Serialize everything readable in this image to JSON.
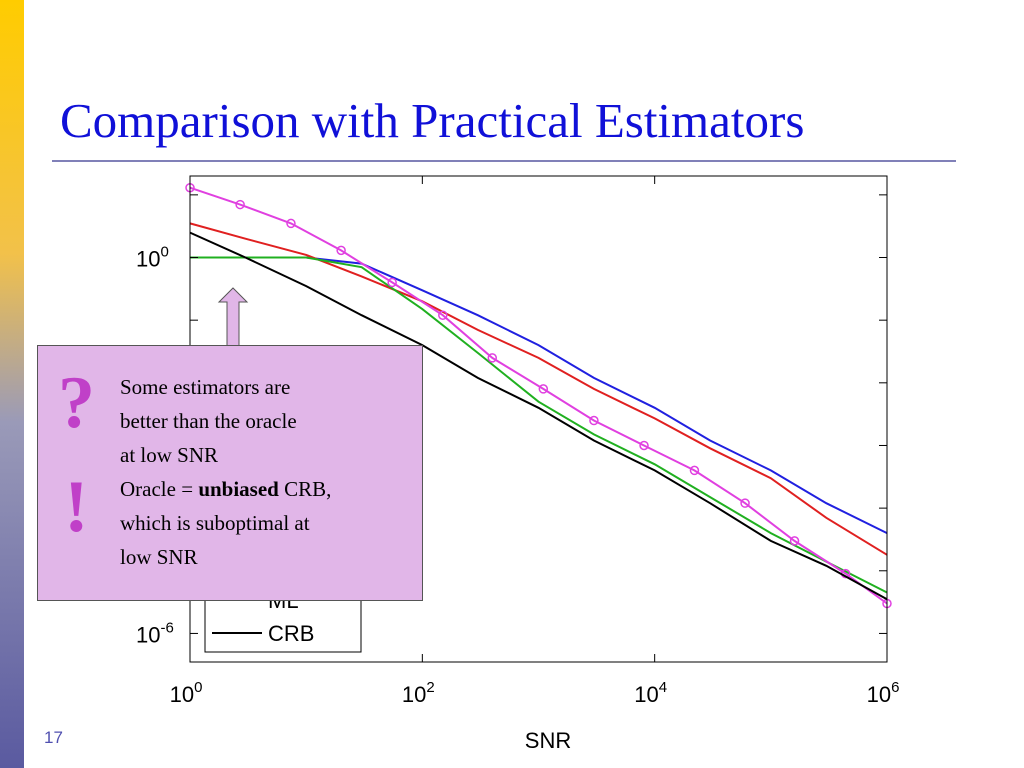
{
  "slide": {
    "title": "Comparison with Practical Estimators",
    "page_number": "17"
  },
  "callout": {
    "symbol_question": "?",
    "symbol_exclaim": "!",
    "line1": "Some estimators are",
    "line2": "better than the oracle",
    "line3": "at low SNR",
    "line4_pre": "Oracle = ",
    "line4_bold": "unbiased",
    "line4_post": " CRB,",
    "line5": "which is suboptimal at",
    "line6": "low SNR"
  },
  "chart_data": {
    "type": "line",
    "title": "",
    "xlabel": "SNR",
    "ylabel": "",
    "xscale": "log",
    "yscale": "log",
    "xlim": [
      1,
      1000000
    ],
    "ylim": [
      3.5e-07,
      20
    ],
    "x_ticks": [
      {
        "base": "10",
        "exp": "0",
        "value": 1
      },
      {
        "base": "10",
        "exp": "2",
        "value": 100
      },
      {
        "base": "10",
        "exp": "4",
        "value": 10000
      },
      {
        "base": "10",
        "exp": "6",
        "value": 1000000
      }
    ],
    "y_ticks": [
      {
        "base": "10",
        "exp": "0",
        "value": 1
      },
      {
        "base": "10",
        "exp": "-6",
        "value": 1e-06
      }
    ],
    "legend": {
      "position": "bottom-left",
      "visible_entries": [
        "ML",
        "CRB"
      ]
    },
    "series": [
      {
        "name": "",
        "color": "#2020e0",
        "marker": "none",
        "x": [
          1,
          3,
          10,
          30,
          100,
          300,
          1000,
          3000,
          10000,
          30000,
          100000,
          300000,
          1000000
        ],
        "y": [
          1.0,
          1.0,
          1.0,
          0.8,
          0.3,
          0.12,
          0.04,
          0.012,
          0.004,
          0.0012,
          0.0004,
          0.00012,
          4e-05
        ]
      },
      {
        "name": "",
        "color": "#e02020",
        "marker": "none",
        "x": [
          1,
          3,
          10,
          30,
          100,
          300,
          1000,
          3000,
          10000,
          30000,
          100000,
          300000,
          1000000
        ],
        "y": [
          3.5,
          2.0,
          1.1,
          0.5,
          0.2,
          0.07,
          0.025,
          0.008,
          0.0027,
          0.0009,
          0.0003,
          7e-05,
          1.8e-05
        ]
      },
      {
        "name": "",
        "color": "#20b020",
        "marker": "none",
        "x": [
          1,
          3,
          10,
          30,
          100,
          300,
          1000,
          3000,
          10000,
          30000,
          100000,
          300000,
          1000000
        ],
        "y": [
          1.0,
          1.0,
          1.0,
          0.7,
          0.15,
          0.03,
          0.005,
          0.0015,
          0.0005,
          0.00015,
          4e-05,
          1.4e-05,
          4.5e-06
        ]
      },
      {
        "name": "",
        "color": "#e040e0",
        "marker": "circle",
        "x": [
          1,
          2.7,
          7.4,
          20,
          55,
          150,
          400,
          1100,
          3000,
          8100,
          22000,
          60000,
          160000,
          440000,
          1000000
        ],
        "y": [
          13,
          7,
          3.5,
          1.3,
          0.4,
          0.12,
          0.025,
          0.008,
          0.0025,
          0.001,
          0.0004,
          0.00012,
          3e-05,
          9e-06,
          3e-06
        ]
      },
      {
        "name": "CRB",
        "color": "#000000",
        "marker": "none",
        "x": [
          1,
          3,
          10,
          30,
          100,
          300,
          1000,
          3000,
          10000,
          30000,
          100000,
          300000,
          1000000
        ],
        "y": [
          2.5,
          1.0,
          0.35,
          0.12,
          0.04,
          0.012,
          0.004,
          0.0012,
          0.0004,
          0.00012,
          3e-05,
          1.2e-05,
          3.5e-06
        ]
      }
    ]
  }
}
